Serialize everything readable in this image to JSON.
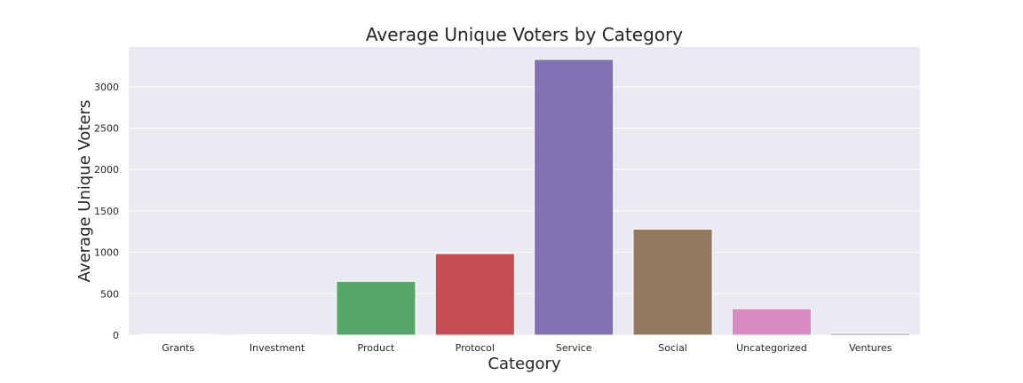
{
  "chart_data": {
    "type": "bar",
    "title": "Average Unique Voters by Category",
    "xlabel": "Category",
    "ylabel": "Average Unique Voters",
    "categories": [
      "Grants",
      "Investment",
      "Product",
      "Protocol",
      "Service",
      "Social",
      "Uncategorized",
      "Ventures"
    ],
    "values": [
      8,
      6,
      650,
      985,
      3330,
      1280,
      320,
      20
    ],
    "colors": [
      "#4c72b0",
      "#dd8452",
      "#55a868",
      "#c44e52",
      "#8172b3",
      "#937860",
      "#da8bc3",
      "#8c8c8c"
    ],
    "ylim": [
      0,
      3480
    ],
    "yticks": [
      0,
      500,
      1000,
      1500,
      2000,
      2500,
      3000
    ],
    "grid": true,
    "background": "#eaeaf2",
    "grid_color": "#ffffff"
  }
}
